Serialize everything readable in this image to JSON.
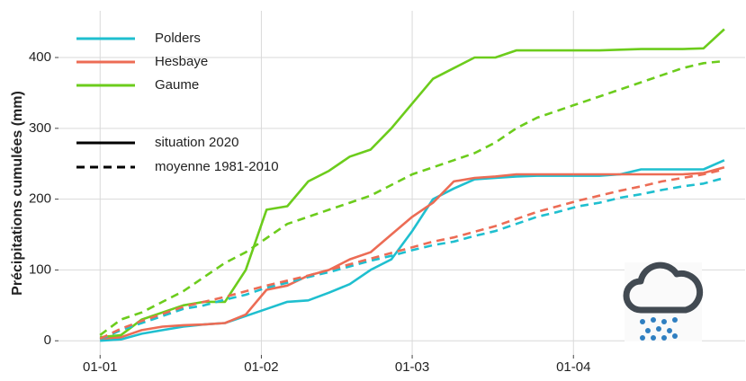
{
  "chart_data": {
    "type": "line",
    "y_label": "Précipitations cumulées (mm)",
    "x": [
      0,
      4,
      8,
      12,
      16,
      20,
      24,
      28,
      32,
      36,
      40,
      44,
      48,
      52,
      56,
      60,
      64,
      68,
      72,
      76,
      80,
      84,
      88,
      92,
      96,
      100,
      104,
      108,
      112,
      116,
      120
    ],
    "xlim": [
      -8,
      124
    ],
    "xticks": [
      {
        "value": 0,
        "label": "01-01"
      },
      {
        "value": 31,
        "label": "01-02"
      },
      {
        "value": 60,
        "label": "01-03"
      },
      {
        "value": 91,
        "label": "01-04"
      }
    ],
    "ylim": [
      -20,
      466
    ],
    "yticks": [
      0,
      100,
      200,
      300,
      400
    ],
    "grid": true,
    "legend_position": "top-left",
    "linetypes": [
      {
        "label": "situation 2020",
        "style": "solid"
      },
      {
        "label": "moyenne 1981-2010",
        "style": "dashed"
      }
    ],
    "series": [
      {
        "name": "Polders",
        "color": "#1fbfcf",
        "values": [
          0,
          2,
          10,
          15,
          20,
          23,
          25,
          35,
          45,
          55,
          57,
          68,
          80,
          100,
          115,
          155,
          200,
          215,
          228,
          230,
          232,
          233,
          233,
          233,
          233,
          235,
          242,
          242,
          242,
          242,
          255
        ],
        "mean_values": [
          2,
          15,
          25,
          35,
          45,
          50,
          58,
          65,
          75,
          82,
          90,
          97,
          105,
          113,
          120,
          128,
          135,
          140,
          148,
          155,
          165,
          175,
          182,
          190,
          195,
          202,
          207,
          213,
          218,
          222,
          230
        ]
      },
      {
        "name": "Hesbaye",
        "color": "#ec6c55",
        "values": [
          3,
          5,
          15,
          20,
          22,
          23,
          25,
          37,
          72,
          78,
          92,
          100,
          115,
          125,
          150,
          175,
          195,
          225,
          230,
          232,
          235,
          235,
          235,
          235,
          235,
          235,
          235,
          235,
          235,
          237,
          245
        ],
        "mean_values": [
          3,
          17,
          28,
          38,
          48,
          55,
          62,
          70,
          78,
          85,
          92,
          100,
          108,
          116,
          124,
          132,
          140,
          146,
          154,
          162,
          172,
          182,
          190,
          198,
          205,
          212,
          218,
          225,
          230,
          235,
          242
        ]
      },
      {
        "name": "Gaume",
        "color": "#6ccc1c",
        "values": [
          5,
          8,
          30,
          40,
          50,
          55,
          55,
          100,
          185,
          190,
          225,
          240,
          260,
          270,
          300,
          335,
          370,
          385,
          400,
          400,
          410,
          410,
          410,
          410,
          410,
          411,
          412,
          412,
          412,
          413,
          440
        ],
        "mean_values": [
          8,
          30,
          40,
          55,
          70,
          90,
          110,
          125,
          145,
          165,
          175,
          185,
          195,
          205,
          220,
          235,
          245,
          255,
          265,
          280,
          300,
          315,
          325,
          335,
          345,
          355,
          365,
          375,
          385,
          392,
          395
        ]
      }
    ]
  }
}
